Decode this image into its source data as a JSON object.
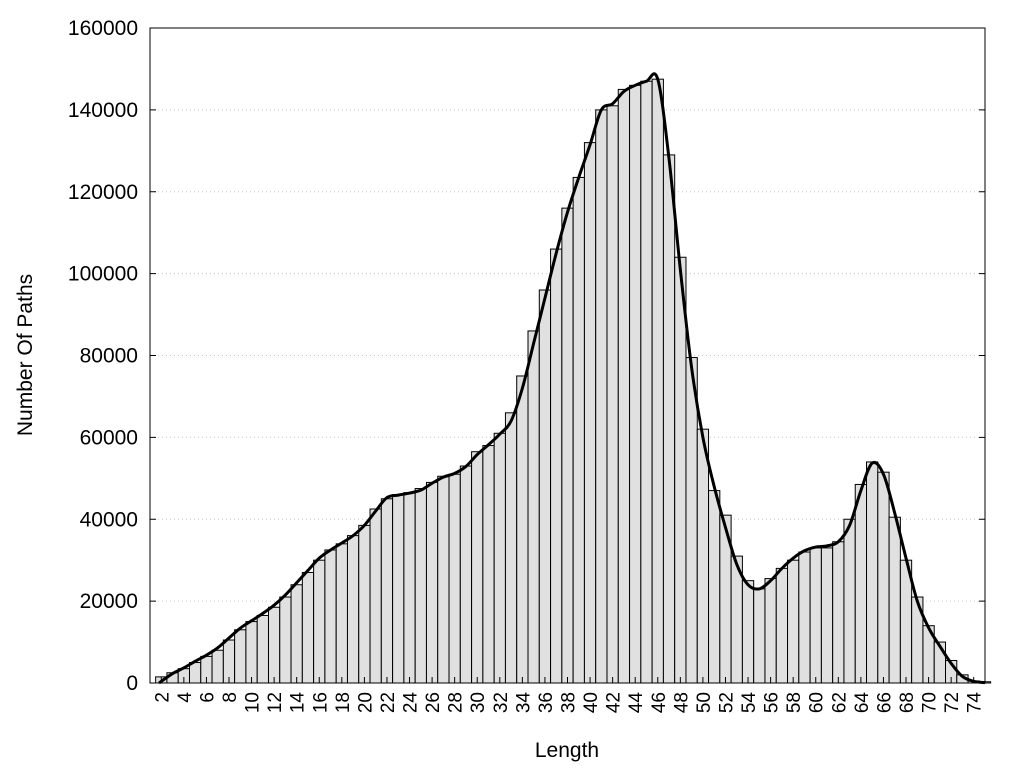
{
  "chart_data": {
    "type": "bar",
    "title": "",
    "xlabel": "Length",
    "ylabel": "Number Of Paths",
    "ylim": [
      0,
      160000
    ],
    "xlim": [
      1,
      75
    ],
    "yticks": [
      0,
      20000,
      40000,
      60000,
      80000,
      100000,
      120000,
      140000,
      160000
    ],
    "xticks": [
      2,
      4,
      6,
      8,
      10,
      12,
      14,
      16,
      18,
      20,
      22,
      24,
      26,
      28,
      30,
      32,
      34,
      36,
      38,
      40,
      42,
      44,
      46,
      48,
      50,
      52,
      54,
      56,
      58,
      60,
      62,
      64,
      66,
      68,
      70,
      72,
      74
    ],
    "grid": "horizontal-dotted",
    "legend": "none",
    "categories": [
      2,
      3,
      4,
      5,
      6,
      7,
      8,
      9,
      10,
      11,
      12,
      13,
      14,
      15,
      16,
      17,
      18,
      19,
      20,
      21,
      22,
      23,
      24,
      25,
      26,
      27,
      28,
      29,
      30,
      31,
      32,
      33,
      34,
      35,
      36,
      37,
      38,
      39,
      40,
      41,
      42,
      43,
      44,
      45,
      46,
      47,
      48,
      49,
      50,
      51,
      52,
      53,
      54,
      55,
      56,
      57,
      58,
      59,
      60,
      61,
      62,
      63,
      64,
      65,
      66,
      67,
      68,
      69,
      70,
      71,
      72,
      73,
      74,
      75
    ],
    "values": [
      1500,
      2500,
      3500,
      5000,
      6500,
      8000,
      10500,
      13000,
      15000,
      16500,
      18500,
      21000,
      24000,
      27000,
      30000,
      32500,
      34000,
      36000,
      38500,
      42500,
      45000,
      46000,
      46500,
      47500,
      49000,
      50500,
      51000,
      53000,
      56500,
      58000,
      61000,
      66000,
      75000,
      86000,
      96000,
      106000,
      116000,
      123500,
      132000,
      140000,
      141000,
      145000,
      146000,
      147000,
      147500,
      129000,
      104000,
      79500,
      62000,
      47000,
      41000,
      31000,
      25000,
      23000,
      25500,
      28000,
      30000,
      32000,
      33000,
      33000,
      34500,
      40000,
      48500,
      54000,
      51500,
      40500,
      30000,
      21000,
      14000,
      10000,
      5500,
      2000,
      500,
      300
    ],
    "series": [
      {
        "type": "line",
        "x": [
          1.8,
          3,
          4,
          5,
          6,
          7,
          8,
          9,
          10,
          11,
          12,
          13,
          14,
          15,
          16,
          17,
          18,
          19,
          20,
          21,
          22,
          23,
          24,
          25,
          26,
          27,
          28,
          29,
          30,
          31,
          32,
          33,
          34,
          35,
          36,
          37,
          38,
          39,
          40,
          41,
          42,
          43,
          44,
          45,
          46,
          47,
          48,
          49,
          50,
          51,
          52,
          53,
          54,
          55,
          56,
          57,
          58,
          59,
          60,
          61,
          62,
          63,
          64,
          65,
          66,
          67,
          68,
          69,
          70,
          71,
          72,
          73,
          74,
          75
        ],
        "y": [
          0,
          2300,
          3700,
          5300,
          6800,
          8600,
          11000,
          13400,
          15200,
          17000,
          19000,
          21500,
          24500,
          27500,
          30500,
          32500,
          34200,
          36000,
          38500,
          42000,
          45300,
          45900,
          46400,
          47100,
          48800,
          50300,
          51200,
          52900,
          55800,
          58200,
          60800,
          64000,
          72000,
          83000,
          94000,
          105000,
          115000,
          123500,
          131500,
          140000,
          141500,
          144500,
          146000,
          147000,
          147500,
          128000,
          101000,
          77000,
          60000,
          48000,
          38000,
          29000,
          24000,
          23000,
          25000,
          28000,
          30500,
          32300,
          33200,
          33500,
          34500,
          38500,
          47000,
          53700,
          51000,
          41500,
          30500,
          20000,
          13500,
          9000,
          4800,
          1600,
          400,
          100
        ]
      }
    ]
  }
}
